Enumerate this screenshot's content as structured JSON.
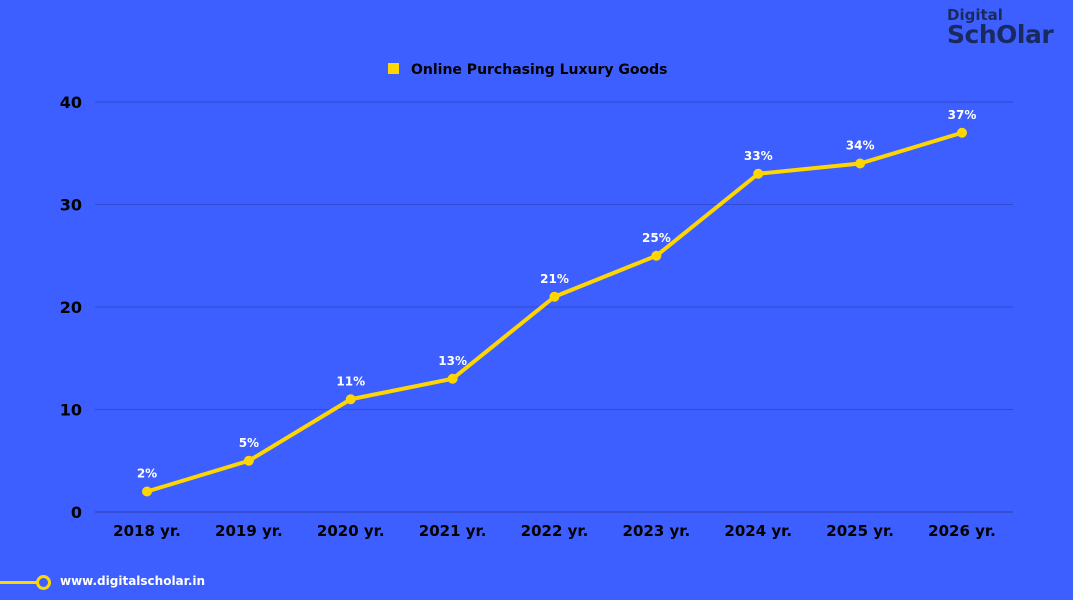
{
  "logo": {
    "line1": "Digital",
    "line2": "ScholAr"
  },
  "footer": {
    "url": "www.digitalscholar.in"
  },
  "colors": {
    "background": "#3d5fff",
    "series": "#ffd600",
    "text": "#000000",
    "labels": "#ffffff",
    "grid": "#2f4bd0"
  },
  "chart_data": {
    "type": "line",
    "title": "",
    "legend": {
      "position": "top-center",
      "entries": [
        "Online Purchasing Luxury Goods"
      ]
    },
    "categories": [
      "2018 yr.",
      "2019 yr.",
      "2020 yr.",
      "2021 yr.",
      "2022 yr.",
      "2023 yr.",
      "2024 yr.",
      "2025 yr.",
      "2026 yr."
    ],
    "series": [
      {
        "name": "Online Purchasing Luxury Goods",
        "values": [
          2,
          5,
          11,
          13,
          21,
          25,
          33,
          34,
          37
        ],
        "data_labels": [
          "2%",
          "5%",
          "11%",
          "13%",
          "21%",
          "25%",
          "33%",
          "34%",
          "37%"
        ]
      }
    ],
    "ylim": [
      0,
      40
    ],
    "yticks": [
      0,
      10,
      20,
      30,
      40
    ],
    "grid": true,
    "xlabel": "",
    "ylabel": ""
  }
}
